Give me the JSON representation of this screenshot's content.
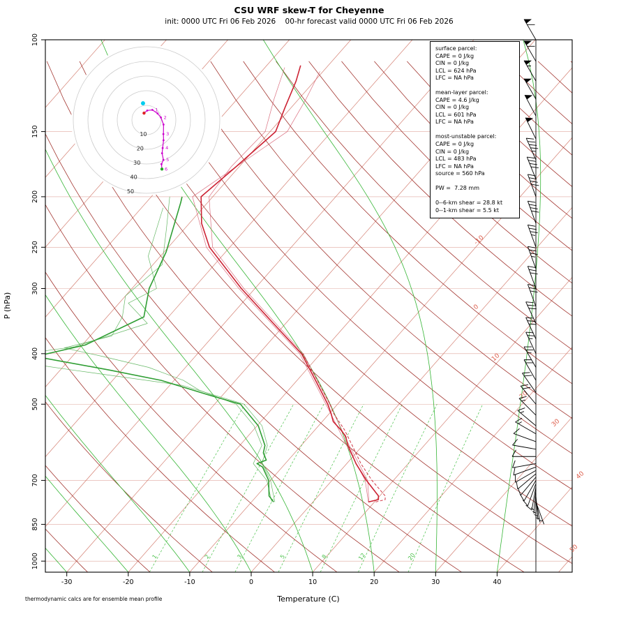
{
  "title": "CSU WRF skew-T for Cheyenne",
  "subtitle": "init: 0000 UTC Fri 06 Feb 2026    00-hr forecast valid 0000 UTC Fri 06 Feb 2026",
  "footer": "thermodynamic calcs are for ensemble mean profile",
  "colors": {
    "temperature": "#cc2233",
    "dewpoint": "#2f9e33",
    "member_temperature": "#d4566a",
    "member_dewpoint": "#55b055",
    "dry_adiabat": "#9e2b25",
    "isotherm": "#cd6a5a",
    "isotherm_label": "#dd5c4a",
    "moist_adiabat": "#35b535",
    "mixing_ratio": "#49c149",
    "pressure_line": "#d89287",
    "hodo_ring": "#cccccc",
    "hodo_trace": "#cc00cc",
    "storm_motion": "#00ccee",
    "surface_marker": "#dd2222",
    "top_marker": "#22aa22",
    "barb": "#000000",
    "frame": "#000000"
  },
  "chart_data": {
    "type": "line",
    "title": "CSU WRF skew-T for Cheyenne",
    "xlabel": "Temperature (C)",
    "ylabel": "P (hPa)",
    "pressure_ticks": [
      100,
      150,
      200,
      250,
      300,
      400,
      500,
      700,
      850,
      1000
    ],
    "temp_ticks": [
      -30,
      -20,
      -10,
      0,
      10,
      20,
      30,
      40
    ],
    "pressure_range": [
      100,
      1050
    ],
    "isotherm_labels": [
      -10,
      0,
      10,
      20,
      30,
      40,
      50
    ],
    "mixing_ratio_lines": [
      1,
      2,
      3,
      5,
      8,
      12,
      20
    ],
    "series": [
      {
        "name": "temperature_member_1",
        "role": "ensemble-member",
        "colorkey": "member_temperature",
        "width": 0.7,
        "opacity": 0.85,
        "dash": false,
        "points": [
          [
            770,
            9.0
          ],
          [
            700,
            5.4
          ],
          [
            600,
            -2.6
          ],
          [
            500,
            -11.9
          ],
          [
            400,
            -23.4
          ],
          [
            300,
            -42.6
          ],
          [
            250,
            -53.8
          ],
          [
            200,
            -63.3
          ],
          [
            150,
            -57.2
          ],
          [
            130,
            -58.8
          ],
          [
            115,
            -60.5
          ]
        ]
      },
      {
        "name": "temperature_member_2",
        "role": "ensemble-member",
        "colorkey": "member_temperature",
        "width": 0.7,
        "opacity": 0.85,
        "dash": false,
        "points": [
          [
            770,
            9.1
          ],
          [
            700,
            5.8
          ],
          [
            600,
            -2.2
          ],
          [
            500,
            -11.3
          ],
          [
            400,
            -22.8
          ],
          [
            300,
            -41.8
          ],
          [
            250,
            -52.8
          ],
          [
            200,
            -60.6
          ],
          [
            175,
            -61.3
          ],
          [
            150,
            -60.8
          ],
          [
            130,
            -64.0
          ],
          [
            113,
            -66.8
          ]
        ]
      },
      {
        "name": "dewpoint_member_1",
        "role": "ensemble-member",
        "colorkey": "member_dewpoint",
        "width": 0.7,
        "opacity": 0.9,
        "dash": false,
        "points": [
          [
            770,
            -6.2
          ],
          [
            700,
            -10.0
          ],
          [
            650,
            -13.8
          ],
          [
            600,
            -15.5
          ],
          [
            550,
            -19.2
          ],
          [
            500,
            -25.2
          ],
          [
            460,
            -38.0
          ],
          [
            430,
            -58.0
          ],
          [
            408,
            -73.0
          ],
          [
            388,
            -61.0
          ],
          [
            350,
            -52.5
          ],
          [
            320,
            -58.5
          ],
          [
            300,
            -56.0
          ],
          [
            260,
            -62.0
          ],
          [
            210,
            -66.5
          ]
        ]
      },
      {
        "name": "dewpoint_member_2",
        "role": "ensemble-member",
        "colorkey": "member_dewpoint",
        "width": 0.7,
        "opacity": 0.9,
        "dash": false,
        "points": [
          [
            770,
            -6.7
          ],
          [
            700,
            -10.6
          ],
          [
            650,
            -15.2
          ],
          [
            600,
            -16.4
          ],
          [
            550,
            -20.5
          ],
          [
            500,
            -26.5
          ],
          [
            470,
            -34.5
          ],
          [
            450,
            -38.5
          ],
          [
            425,
            -46.0
          ],
          [
            405,
            -55.0
          ],
          [
            390,
            -62.5
          ],
          [
            370,
            -56.5
          ],
          [
            340,
            -57.5
          ],
          [
            310,
            -60.0
          ],
          [
            270,
            -58.5
          ],
          [
            230,
            -63.0
          ],
          [
            200,
            -67.0
          ]
        ]
      },
      {
        "name": "virtual_temperature",
        "role": "virtual-temperature",
        "colorkey": "temperature",
        "width": 1.0,
        "opacity": 0.9,
        "dash": true,
        "points": [
          [
            770,
            10.2
          ],
          [
            762,
            11.4
          ],
          [
            750,
            10.9
          ],
          [
            700,
            6.5
          ],
          [
            650,
            2.3
          ],
          [
            600,
            -1.7
          ],
          [
            560,
            -5.2
          ],
          [
            520,
            -9.4
          ],
          [
            500,
            -11.2
          ],
          [
            450,
            -16.7
          ],
          [
            400,
            -22.9
          ]
        ]
      },
      {
        "name": "dewpoint_mean",
        "role": "dewpoint",
        "colorkey": "dewpoint",
        "width": 1.6,
        "opacity": 1,
        "dash": false,
        "points": [
          [
            770,
            -6.4
          ],
          [
            750,
            -8.0
          ],
          [
            700,
            -10.3
          ],
          [
            660,
            -13.2
          ],
          [
            650,
            -14.6
          ],
          [
            640,
            -13.6
          ],
          [
            620,
            -15.1
          ],
          [
            600,
            -15.9
          ],
          [
            550,
            -19.8
          ],
          [
            500,
            -25.8
          ],
          [
            480,
            -32.3
          ],
          [
            450,
            -42.1
          ],
          [
            430,
            -52.0
          ],
          [
            405,
            -66.0
          ],
          [
            385,
            -59.5
          ],
          [
            340,
            -54.0
          ],
          [
            300,
            -57.2
          ],
          [
            255,
            -59.7
          ],
          [
            205,
            -64.4
          ],
          [
            200,
            -65.0
          ]
        ]
      },
      {
        "name": "temperature_mean",
        "role": "temperature",
        "colorkey": "temperature",
        "width": 1.6,
        "opacity": 1,
        "dash": false,
        "points": [
          [
            770,
            9.0
          ],
          [
            762,
            10.3
          ],
          [
            750,
            9.8
          ],
          [
            700,
            5.6
          ],
          [
            650,
            1.5
          ],
          [
            600,
            -2.4
          ],
          [
            575,
            -4.2
          ],
          [
            560,
            -5.8
          ],
          [
            540,
            -8.2
          ],
          [
            520,
            -9.8
          ],
          [
            500,
            -11.6
          ],
          [
            450,
            -17.0
          ],
          [
            400,
            -23.1
          ],
          [
            350,
            -32.0
          ],
          [
            300,
            -42.2
          ],
          [
            250,
            -53.3
          ],
          [
            225,
            -58.0
          ],
          [
            200,
            -61.9
          ],
          [
            175,
            -60.5
          ],
          [
            150,
            -59.1
          ],
          [
            135,
            -61.0
          ],
          [
            120,
            -63.0
          ],
          [
            112,
            -64.5
          ]
        ]
      }
    ],
    "wind_barbs": [
      [
        770,
        5,
        160
      ],
      [
        760,
        5,
        170
      ],
      [
        750,
        5,
        175
      ],
      [
        740,
        7,
        180
      ],
      [
        730,
        7,
        185
      ],
      [
        720,
        8,
        190
      ],
      [
        710,
        8,
        200
      ],
      [
        700,
        8,
        210
      ],
      [
        690,
        9,
        220
      ],
      [
        680,
        9,
        230
      ],
      [
        670,
        10,
        240
      ],
      [
        660,
        10,
        250
      ],
      [
        650,
        10,
        260
      ],
      [
        630,
        10,
        270
      ],
      [
        610,
        12,
        280
      ],
      [
        590,
        12,
        290
      ],
      [
        570,
        14,
        300
      ],
      [
        550,
        15,
        310
      ],
      [
        525,
        15,
        315
      ],
      [
        500,
        18,
        320
      ],
      [
        475,
        20,
        325
      ],
      [
        450,
        22,
        330
      ],
      [
        425,
        25,
        330
      ],
      [
        400,
        25,
        335
      ],
      [
        375,
        28,
        335
      ],
      [
        350,
        30,
        335
      ],
      [
        325,
        30,
        340
      ],
      [
        300,
        32,
        340
      ],
      [
        275,
        35,
        340
      ],
      [
        250,
        35,
        340
      ],
      [
        225,
        38,
        340
      ],
      [
        200,
        40,
        340
      ],
      [
        185,
        42,
        338
      ],
      [
        170,
        45,
        336
      ],
      [
        155,
        48,
        334
      ],
      [
        140,
        50,
        332
      ],
      [
        130,
        52,
        330
      ],
      [
        120,
        55,
        330
      ],
      [
        110,
        58,
        330
      ],
      [
        100,
        60,
        330
      ]
    ],
    "hodograph": {
      "ring_labels": [
        10,
        20,
        30,
        40,
        50
      ],
      "ring_units": "kt",
      "trace": [
        [
          -1.7,
          4.7
        ],
        [
          0.5,
          6.5
        ],
        [
          4.0,
          6.9
        ],
        [
          7.5,
          4.5
        ],
        [
          9.8,
          1.7
        ],
        [
          11.6,
          -3.1
        ],
        [
          11.5,
          -9.6
        ],
        [
          11.6,
          -13.8
        ],
        [
          11.0,
          -19.1
        ],
        [
          10.6,
          -22.7
        ],
        [
          11.5,
          -27.2
        ],
        [
          10.2,
          -30.1
        ],
        [
          10.5,
          -33.5
        ]
      ],
      "km_labels": [
        1,
        2,
        3,
        4,
        5,
        6
      ],
      "storm_motion": [
        -2.4,
        11.4
      ]
    }
  },
  "info_box": {
    "lines": [
      "surface parcel:",
      "CAPE = 0 J/kg",
      "CIN = 0 J/kg",
      "LCL = 624 hPa",
      "LFC = NA hPa",
      "",
      "mean-layer parcel:",
      "CAPE = 4.6 J/kg",
      "CIN = 0 J/kg",
      "LCL = 601 hPa",
      "LFC = NA hPa",
      "",
      "most-unstable parcel:",
      "CAPE = 0 J/kg",
      "CIN = 0 J/kg",
      "LCL = 483 hPa",
      "LFC = NA hPa",
      "source = 560 hPa",
      "",
      "PW =  7.28 mm",
      "",
      "0--6-km shear = 28.8 kt",
      "0--1-km shear = 5.5 kt"
    ]
  }
}
